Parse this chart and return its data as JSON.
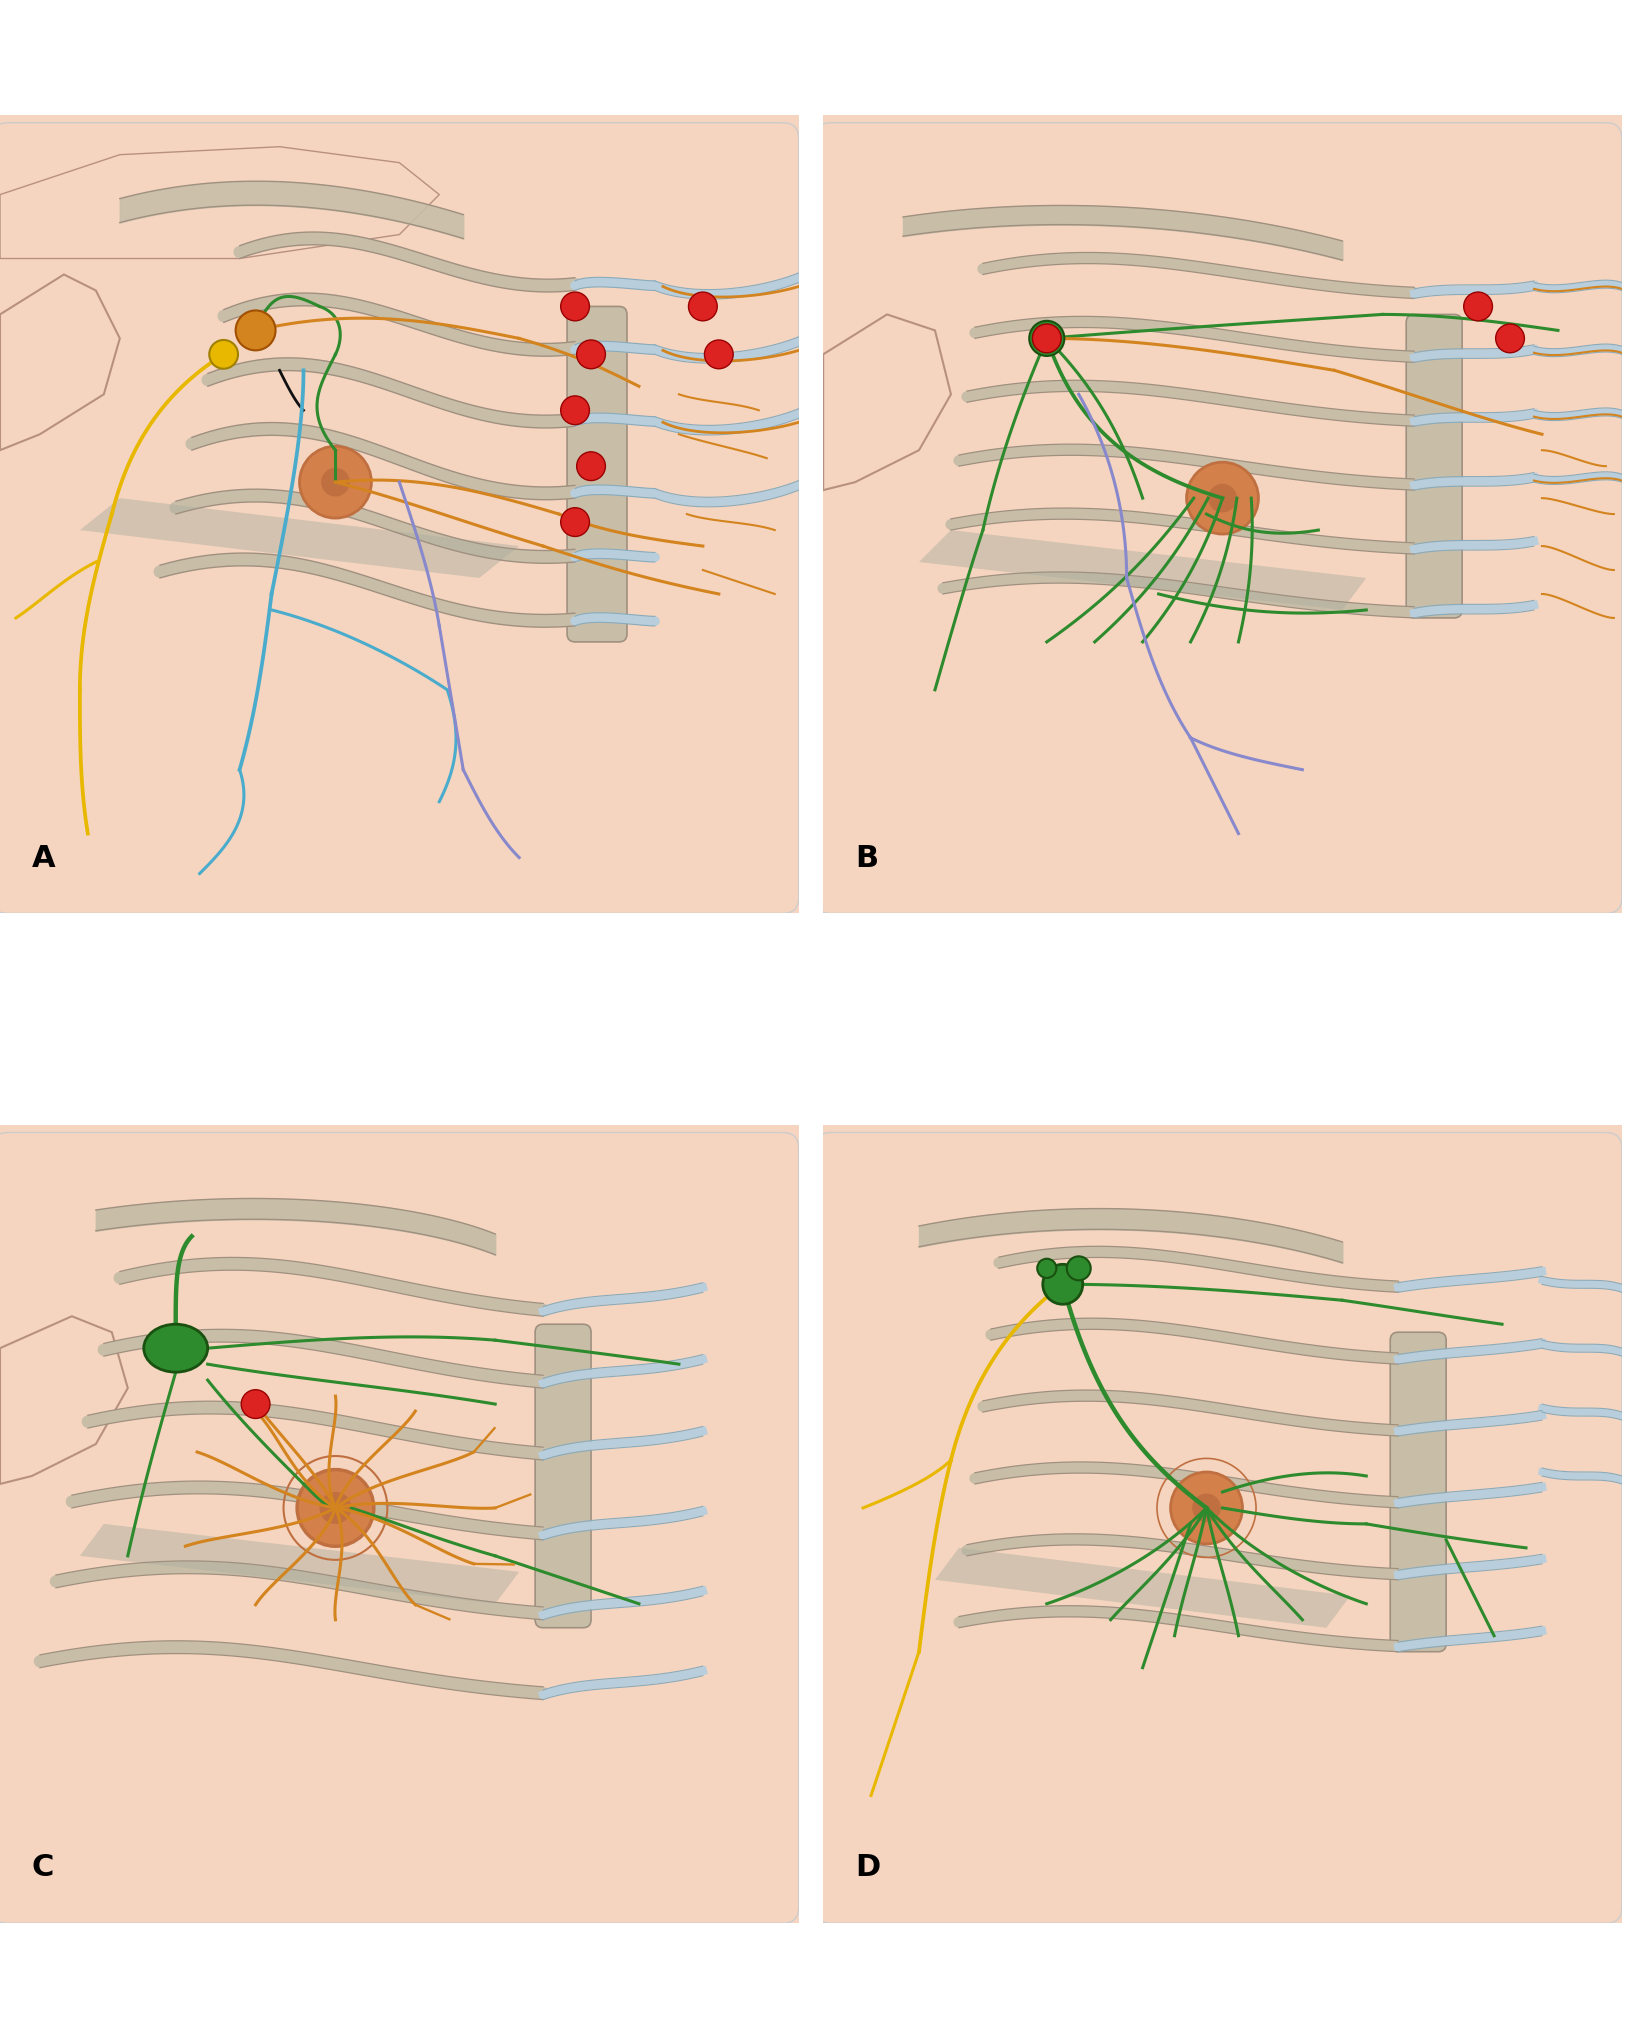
{
  "background_color": "#FDEEE6",
  "panel_bg": "#FDEEE6",
  "skin_color": "#F5D5C0",
  "bone_color": "#C8BEA8",
  "bone_cartilage_color": "#B8CEDC",
  "bone_outline": "#A09080",
  "nipple_color": "#D4804A",
  "nipple_outline": "#C07040",
  "fig_width": 16.3,
  "fig_height": 20.4,
  "colors": {
    "green": "#2D8B2D",
    "orange": "#D4841E",
    "black": "#111111",
    "yellow": "#E8B800",
    "light_blue": "#4AACCC",
    "purple": "#8888CC",
    "red": "#DD2222",
    "dark_green": "#1A6B1A"
  },
  "labels": [
    "A",
    "B",
    "C",
    "D"
  ],
  "label_fontsize": 22,
  "label_color": "#000000"
}
